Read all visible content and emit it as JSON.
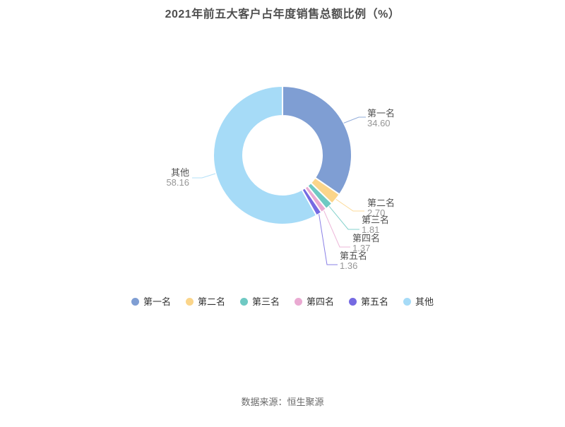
{
  "page": {
    "title": "2021年前五大客户占年度销售总额比例（%）",
    "source_note": "数据来源：恒生聚源"
  },
  "chart_data": {
    "type": "pie",
    "subtype": "donut",
    "title": "2021年前五大客户占年度销售总额比例（%）",
    "unit": "%",
    "categories": [
      "第一名",
      "第二名",
      "第三名",
      "第四名",
      "第五名",
      "其他"
    ],
    "values": [
      34.6,
      2.7,
      1.81,
      1.37,
      1.36,
      58.16
    ],
    "value_labels": [
      "34.60",
      "2.70",
      "1.81",
      "1.37",
      "1.36",
      "58.16"
    ],
    "colors": [
      "#7f9ed3",
      "#fbd58a",
      "#6fc9c3",
      "#eaaad2",
      "#756ae2",
      "#a6dbf7"
    ],
    "start_angle": "top",
    "direction": "clockwise",
    "inner_radius_ratio": 0.57,
    "legend_position": "bottom",
    "grid": false,
    "source": "数据来源：恒生聚源"
  }
}
